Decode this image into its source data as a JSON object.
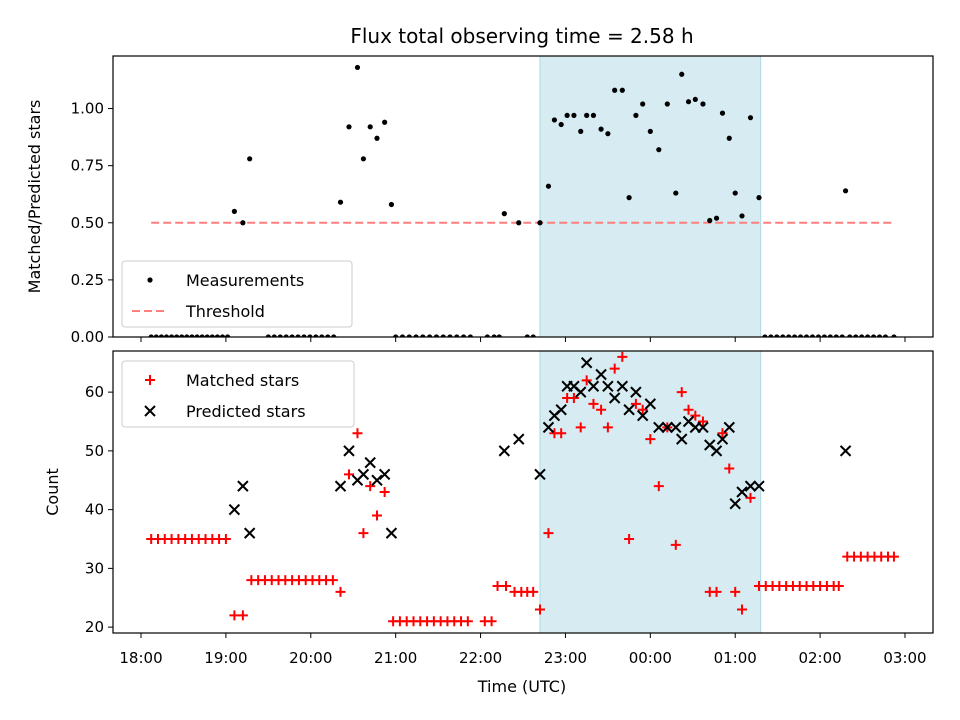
{
  "figure": {
    "title": "Flux total observing time = 2.58 h",
    "xlabel": "Time (UTC)",
    "x_ticks": [
      "18:00",
      "19:00",
      "20:00",
      "21:00",
      "22:00",
      "23:00",
      "00:00",
      "01:00",
      "02:00",
      "03:00"
    ]
  },
  "colors": {
    "measurement": "#000000",
    "threshold": "#ff7f7f",
    "matched": "#ff0000",
    "predicted": "#000000",
    "highlight": "#add8e6"
  },
  "chart_data": [
    {
      "type": "scatter",
      "ylabel": "Matched/Predicted stars",
      "x_unit": "hours_since_18:00_UTC",
      "xlim": [
        -0.33,
        9.33
      ],
      "ylim": [
        0,
        1.23
      ],
      "y_ticks": [
        "0.00",
        "0.25",
        "0.50",
        "0.75",
        "1.00"
      ],
      "highlight_span": [
        4.7,
        7.3
      ],
      "legend": {
        "position": "lower-left",
        "entries": [
          "Measurements",
          "Threshold"
        ]
      },
      "threshold": {
        "name": "Threshold",
        "value": 0.5,
        "x_range": [
          0.12,
          8.87
        ]
      },
      "series": [
        {
          "name": "Measurements",
          "points": [
            [
              0.12,
              0
            ],
            [
              0.18,
              0
            ],
            [
              0.24,
              0
            ],
            [
              0.3,
              0
            ],
            [
              0.36,
              0
            ],
            [
              0.42,
              0
            ],
            [
              0.48,
              0
            ],
            [
              0.54,
              0
            ],
            [
              0.6,
              0
            ],
            [
              0.66,
              0
            ],
            [
              0.72,
              0
            ],
            [
              0.78,
              0
            ],
            [
              0.84,
              0
            ],
            [
              0.9,
              0
            ],
            [
              0.96,
              0
            ],
            [
              1.02,
              0
            ],
            [
              1.1,
              0.55
            ],
            [
              1.2,
              0.5
            ],
            [
              1.28,
              0.78
            ],
            [
              1.5,
              0
            ],
            [
              1.57,
              0
            ],
            [
              1.64,
              0
            ],
            [
              1.71,
              0
            ],
            [
              1.78,
              0
            ],
            [
              1.85,
              0
            ],
            [
              1.92,
              0
            ],
            [
              1.99,
              0
            ],
            [
              2.06,
              0
            ],
            [
              2.13,
              0
            ],
            [
              2.2,
              0
            ],
            [
              2.27,
              0
            ],
            [
              2.35,
              0.59
            ],
            [
              2.45,
              0.92
            ],
            [
              2.55,
              1.18
            ],
            [
              2.62,
              0.78
            ],
            [
              2.7,
              0.92
            ],
            [
              2.78,
              0.87
            ],
            [
              2.87,
              0.94
            ],
            [
              2.95,
              0.58
            ],
            [
              3.0,
              0
            ],
            [
              3.08,
              0
            ],
            [
              3.16,
              0
            ],
            [
              3.24,
              0
            ],
            [
              3.32,
              0
            ],
            [
              3.4,
              0
            ],
            [
              3.48,
              0
            ],
            [
              3.56,
              0
            ],
            [
              3.64,
              0
            ],
            [
              3.72,
              0
            ],
            [
              3.8,
              0
            ],
            [
              3.88,
              0
            ],
            [
              4.08,
              0
            ],
            [
              4.16,
              0
            ],
            [
              4.22,
              0
            ],
            [
              4.28,
              0.54
            ],
            [
              4.45,
              0.5
            ],
            [
              4.55,
              0
            ],
            [
              4.62,
              0
            ],
            [
              4.7,
              0.5
            ],
            [
              4.8,
              0.66
            ],
            [
              4.87,
              0.95
            ],
            [
              4.95,
              0.93
            ],
            [
              5.02,
              0.97
            ],
            [
              5.1,
              0.97
            ],
            [
              5.18,
              0.9
            ],
            [
              5.25,
              0.97
            ],
            [
              5.33,
              0.97
            ],
            [
              5.42,
              0.91
            ],
            [
              5.5,
              0.89
            ],
            [
              5.58,
              1.08
            ],
            [
              5.67,
              1.08
            ],
            [
              5.75,
              0.61
            ],
            [
              5.83,
              0.97
            ],
            [
              5.91,
              1.02
            ],
            [
              6.0,
              0.9
            ],
            [
              6.1,
              0.82
            ],
            [
              6.2,
              1.02
            ],
            [
              6.3,
              0.63
            ],
            [
              6.37,
              1.15
            ],
            [
              6.45,
              1.03
            ],
            [
              6.53,
              1.04
            ],
            [
              6.62,
              1.02
            ],
            [
              6.7,
              0.51
            ],
            [
              6.78,
              0.52
            ],
            [
              6.85,
              0.98
            ],
            [
              6.93,
              0.87
            ],
            [
              7.0,
              0.63
            ],
            [
              7.08,
              0.53
            ],
            [
              7.18,
              0.96
            ],
            [
              7.28,
              0.61
            ],
            [
              7.35,
              0
            ],
            [
              7.42,
              0
            ],
            [
              7.49,
              0
            ],
            [
              7.56,
              0
            ],
            [
              7.63,
              0
            ],
            [
              7.7,
              0
            ],
            [
              7.77,
              0
            ],
            [
              7.84,
              0
            ],
            [
              7.91,
              0
            ],
            [
              7.98,
              0
            ],
            [
              8.05,
              0
            ],
            [
              8.12,
              0
            ],
            [
              8.19,
              0
            ],
            [
              8.26,
              0
            ],
            [
              8.3,
              0.64
            ],
            [
              8.35,
              0
            ],
            [
              8.42,
              0
            ],
            [
              8.49,
              0
            ],
            [
              8.56,
              0
            ],
            [
              8.63,
              0
            ],
            [
              8.7,
              0
            ],
            [
              8.77,
              0
            ],
            [
              8.87,
              0
            ]
          ]
        }
      ]
    },
    {
      "type": "scatter",
      "ylabel": "Count",
      "x_unit": "hours_since_18:00_UTC",
      "xlim": [
        -0.33,
        9.33
      ],
      "ylim": [
        19,
        67
      ],
      "y_ticks": [
        "20",
        "30",
        "40",
        "50",
        "60"
      ],
      "highlight_span": [
        4.7,
        7.3
      ],
      "legend": {
        "position": "upper-left",
        "entries": [
          "Matched stars",
          "Predicted stars"
        ]
      },
      "series": [
        {
          "name": "Matched stars",
          "marker": "plus",
          "points": [
            [
              0.12,
              35
            ],
            [
              0.2,
              35
            ],
            [
              0.28,
              35
            ],
            [
              0.36,
              35
            ],
            [
              0.44,
              35
            ],
            [
              0.52,
              35
            ],
            [
              0.6,
              35
            ],
            [
              0.68,
              35
            ],
            [
              0.76,
              35
            ],
            [
              0.84,
              35
            ],
            [
              0.92,
              35
            ],
            [
              1.0,
              35
            ],
            [
              1.1,
              22
            ],
            [
              1.2,
              22
            ],
            [
              1.3,
              28
            ],
            [
              1.38,
              28
            ],
            [
              1.46,
              28
            ],
            [
              1.54,
              28
            ],
            [
              1.62,
              28
            ],
            [
              1.7,
              28
            ],
            [
              1.78,
              28
            ],
            [
              1.86,
              28
            ],
            [
              1.94,
              28
            ],
            [
              2.02,
              28
            ],
            [
              2.1,
              28
            ],
            [
              2.18,
              28
            ],
            [
              2.26,
              28
            ],
            [
              2.35,
              26
            ],
            [
              2.45,
              46
            ],
            [
              2.55,
              53
            ],
            [
              2.62,
              36
            ],
            [
              2.7,
              44
            ],
            [
              2.78,
              39
            ],
            [
              2.87,
              43
            ],
            [
              2.97,
              21
            ],
            [
              3.05,
              21
            ],
            [
              3.13,
              21
            ],
            [
              3.21,
              21
            ],
            [
              3.29,
              21
            ],
            [
              3.37,
              21
            ],
            [
              3.45,
              21
            ],
            [
              3.53,
              21
            ],
            [
              3.61,
              21
            ],
            [
              3.69,
              21
            ],
            [
              3.77,
              21
            ],
            [
              3.85,
              21
            ],
            [
              4.05,
              21
            ],
            [
              4.13,
              21
            ],
            [
              4.2,
              27
            ],
            [
              4.3,
              27
            ],
            [
              4.4,
              26
            ],
            [
              4.48,
              26
            ],
            [
              4.55,
              26
            ],
            [
              4.62,
              26
            ],
            [
              4.7,
              23
            ],
            [
              4.8,
              36
            ],
            [
              4.87,
              53
            ],
            [
              4.95,
              53
            ],
            [
              5.02,
              59
            ],
            [
              5.1,
              59
            ],
            [
              5.18,
              54
            ],
            [
              5.25,
              62
            ],
            [
              5.33,
              58
            ],
            [
              5.42,
              57
            ],
            [
              5.5,
              54
            ],
            [
              5.58,
              64
            ],
            [
              5.67,
              66
            ],
            [
              5.75,
              35
            ],
            [
              5.83,
              58
            ],
            [
              5.91,
              57
            ],
            [
              6.0,
              52
            ],
            [
              6.1,
              44
            ],
            [
              6.2,
              54
            ],
            [
              6.3,
              34
            ],
            [
              6.37,
              60
            ],
            [
              6.45,
              57
            ],
            [
              6.53,
              56
            ],
            [
              6.62,
              55
            ],
            [
              6.7,
              26
            ],
            [
              6.78,
              26
            ],
            [
              6.85,
              53
            ],
            [
              6.93,
              47
            ],
            [
              7.0,
              26
            ],
            [
              7.08,
              23
            ],
            [
              7.18,
              42
            ],
            [
              7.28,
              27
            ],
            [
              7.36,
              27
            ],
            [
              7.44,
              27
            ],
            [
              7.52,
              27
            ],
            [
              7.6,
              27
            ],
            [
              7.68,
              27
            ],
            [
              7.76,
              27
            ],
            [
              7.84,
              27
            ],
            [
              7.92,
              27
            ],
            [
              8.0,
              27
            ],
            [
              8.08,
              27
            ],
            [
              8.16,
              27
            ],
            [
              8.22,
              27
            ],
            [
              8.32,
              32
            ],
            [
              8.4,
              32
            ],
            [
              8.48,
              32
            ],
            [
              8.56,
              32
            ],
            [
              8.64,
              32
            ],
            [
              8.72,
              32
            ],
            [
              8.8,
              32
            ],
            [
              8.87,
              32
            ]
          ]
        },
        {
          "name": "Predicted stars",
          "marker": "x",
          "points": [
            [
              1.1,
              40
            ],
            [
              1.2,
              44
            ],
            [
              1.28,
              36
            ],
            [
              2.35,
              44
            ],
            [
              2.45,
              50
            ],
            [
              2.55,
              45
            ],
            [
              2.62,
              46
            ],
            [
              2.7,
              48
            ],
            [
              2.78,
              45
            ],
            [
              2.87,
              46
            ],
            [
              2.95,
              36
            ],
            [
              4.28,
              50
            ],
            [
              4.45,
              52
            ],
            [
              4.7,
              46
            ],
            [
              4.8,
              54
            ],
            [
              4.87,
              56
            ],
            [
              4.95,
              57
            ],
            [
              5.02,
              61
            ],
            [
              5.1,
              61
            ],
            [
              5.18,
              60
            ],
            [
              5.25,
              65
            ],
            [
              5.33,
              61
            ],
            [
              5.42,
              63
            ],
            [
              5.5,
              61
            ],
            [
              5.58,
              59
            ],
            [
              5.67,
              61
            ],
            [
              5.75,
              57
            ],
            [
              5.83,
              60
            ],
            [
              5.91,
              56
            ],
            [
              6.0,
              58
            ],
            [
              6.1,
              54
            ],
            [
              6.2,
              54
            ],
            [
              6.3,
              54
            ],
            [
              6.37,
              52
            ],
            [
              6.45,
              55
            ],
            [
              6.53,
              54
            ],
            [
              6.62,
              54
            ],
            [
              6.7,
              51
            ],
            [
              6.78,
              50
            ],
            [
              6.85,
              52
            ],
            [
              6.93,
              54
            ],
            [
              7.0,
              41
            ],
            [
              7.08,
              43
            ],
            [
              7.18,
              44
            ],
            [
              7.28,
              44
            ],
            [
              8.3,
              50
            ]
          ]
        }
      ]
    }
  ]
}
